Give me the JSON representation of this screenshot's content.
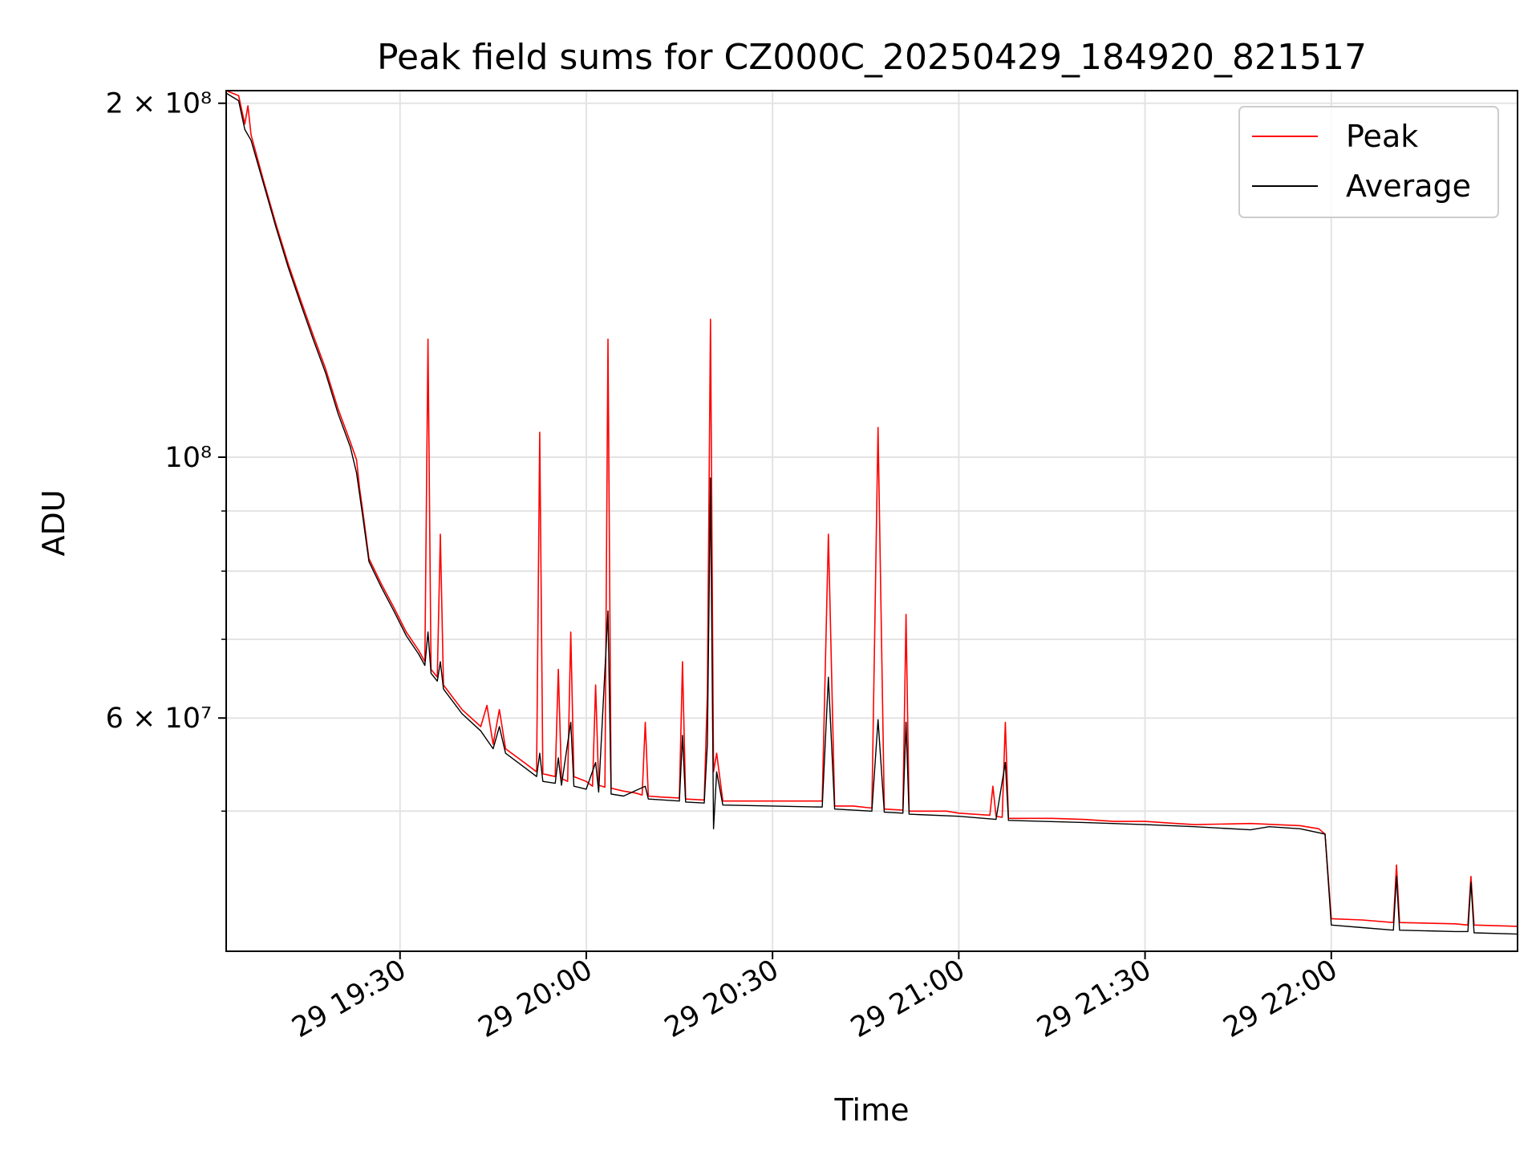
{
  "chart_data": {
    "type": "line",
    "title": "Peak field sums for CZ000C_20250429_184920_821517",
    "xlabel": "Time",
    "ylabel": "ADU",
    "x_axis": {
      "kind": "time",
      "range": [
        "2025-04-29 19:02:00",
        "2025-04-29 22:30:00"
      ],
      "ticks": [
        {
          "t": "2025-04-29 19:30",
          "label": "29 19:30"
        },
        {
          "t": "2025-04-29 20:00",
          "label": "29 20:00"
        },
        {
          "t": "2025-04-29 20:30",
          "label": "29 20:30"
        },
        {
          "t": "2025-04-29 21:00",
          "label": "29 21:00"
        },
        {
          "t": "2025-04-29 21:30",
          "label": "29 21:30"
        },
        {
          "t": "2025-04-29 22:00",
          "label": "29 22:00"
        }
      ]
    },
    "y_axis": {
      "scale": "log",
      "range": [
        38000000,
        205000000
      ],
      "major_ticks": [
        {
          "value": 200000000,
          "label": "2 × 10⁸"
        },
        {
          "value": 100000000,
          "label": "10⁸"
        },
        {
          "value": 60000000,
          "label": "6 × 10⁷"
        }
      ],
      "minor_ticks": [
        50000000,
        70000000,
        80000000,
        90000000
      ]
    },
    "grid": true,
    "legend": {
      "position": "top-right"
    },
    "series": [
      {
        "name": "Peak",
        "color": "#ff0000",
        "points": [
          [
            "19:02",
            205000000
          ],
          [
            "19:04",
            203000000
          ],
          [
            "19:05",
            192000000
          ],
          [
            "19:05.5",
            199000000
          ],
          [
            "19:06",
            188000000
          ],
          [
            "19:08",
            172000000
          ],
          [
            "19:10",
            158000000
          ],
          [
            "19:12",
            146000000
          ],
          [
            "19:14",
            136000000
          ],
          [
            "19:16",
            127000000
          ],
          [
            "19:18",
            119000000
          ],
          [
            "19:20",
            110000000
          ],
          [
            "19:22",
            103000000
          ],
          [
            "19:23",
            99500000
          ],
          [
            "19:23.5",
            94000000
          ],
          [
            "19:24",
            90000000
          ],
          [
            "19:25",
            82000000
          ],
          [
            "19:27",
            78000000
          ],
          [
            "19:29",
            74500000
          ],
          [
            "19:31",
            71000000
          ],
          [
            "19:33",
            68500000
          ],
          [
            "19:34",
            67000000
          ],
          [
            "19:34.5",
            126000000
          ],
          [
            "19:35",
            66000000
          ],
          [
            "19:36",
            65000000
          ],
          [
            "19:36.5",
            86000000
          ],
          [
            "19:37",
            64000000
          ],
          [
            "19:40",
            61000000
          ],
          [
            "19:43",
            59000000
          ],
          [
            "19:44",
            61500000
          ],
          [
            "19:45",
            57000000
          ],
          [
            "19:46",
            61000000
          ],
          [
            "19:47",
            56500000
          ],
          [
            "19:50",
            55000000
          ],
          [
            "19:52",
            54000000
          ],
          [
            "19:52.5",
            105000000
          ],
          [
            "19:53",
            53800000
          ],
          [
            "19:55",
            53500000
          ],
          [
            "19:55.5",
            66000000
          ],
          [
            "19:56",
            53300000
          ],
          [
            "19:57",
            53000000
          ],
          [
            "19:57.5",
            71000000
          ],
          [
            "19:58",
            53500000
          ],
          [
            "20:00",
            53000000
          ],
          [
            "20:01",
            52500000
          ],
          [
            "20:01.5",
            64000000
          ],
          [
            "20:02",
            52600000
          ],
          [
            "20:03",
            52400000
          ],
          [
            "20:03.5",
            126000000
          ],
          [
            "20:04",
            52300000
          ],
          [
            "20:06",
            52000000
          ],
          [
            "20:08",
            51800000
          ],
          [
            "20:09",
            51600000
          ],
          [
            "20:09.5",
            59500000
          ],
          [
            "20:10",
            51500000
          ],
          [
            "20:12",
            51400000
          ],
          [
            "20:15",
            51300000
          ],
          [
            "20:15.5",
            67000000
          ],
          [
            "20:16",
            51200000
          ],
          [
            "20:19",
            51100000
          ],
          [
            "20:19.5",
            63000000
          ],
          [
            "20:20",
            131000000
          ],
          [
            "20:20.5",
            54000000
          ],
          [
            "20:21",
            56000000
          ],
          [
            "20:22",
            51000000
          ],
          [
            "20:25",
            51000000
          ],
          [
            "20:30",
            51000000
          ],
          [
            "20:35",
            51000000
          ],
          [
            "20:38",
            51000000
          ],
          [
            "20:39",
            86000000
          ],
          [
            "20:40",
            50500000
          ],
          [
            "20:43",
            50500000
          ],
          [
            "20:46",
            50300000
          ],
          [
            "20:47",
            106000000
          ],
          [
            "20:48",
            50200000
          ],
          [
            "20:51",
            50100000
          ],
          [
            "20:51.5",
            73500000
          ],
          [
            "20:52",
            50000000
          ],
          [
            "20:55",
            50000000
          ],
          [
            "20:58",
            50000000
          ],
          [
            "21:00",
            49800000
          ],
          [
            "21:05",
            49600000
          ],
          [
            "21:05.5",
            52500000
          ],
          [
            "21:06",
            49500000
          ],
          [
            "21:07",
            49400000
          ],
          [
            "21:07.5",
            59500000
          ],
          [
            "21:08",
            49300000
          ],
          [
            "21:15",
            49300000
          ],
          [
            "21:20",
            49200000
          ],
          [
            "21:25",
            49000000
          ],
          [
            "21:30",
            49000000
          ],
          [
            "21:35",
            48800000
          ],
          [
            "21:38",
            48700000
          ],
          [
            "21:47",
            48800000
          ],
          [
            "21:55",
            48600000
          ],
          [
            "21:58",
            48300000
          ],
          [
            "21:59",
            47800000
          ],
          [
            "22:00",
            40500000
          ],
          [
            "22:05",
            40400000
          ],
          [
            "22:10",
            40200000
          ],
          [
            "22:10.5",
            45000000
          ],
          [
            "22:11",
            40200000
          ],
          [
            "22:20",
            40100000
          ],
          [
            "22:22",
            40000000
          ],
          [
            "22:22.5",
            44000000
          ],
          [
            "22:23",
            40000000
          ],
          [
            "22:30",
            39900000
          ]
        ]
      },
      {
        "name": "Average",
        "color": "#000000",
        "points": [
          [
            "19:02",
            204000000
          ],
          [
            "19:04",
            201000000
          ],
          [
            "19:05",
            190000000
          ],
          [
            "19:06",
            186000000
          ],
          [
            "19:08",
            171000000
          ],
          [
            "19:10",
            157000000
          ],
          [
            "19:12",
            145000000
          ],
          [
            "19:14",
            135000000
          ],
          [
            "19:16",
            126000000
          ],
          [
            "19:18",
            118000000
          ],
          [
            "19:20",
            109000000
          ],
          [
            "19:22",
            102000000
          ],
          [
            "19:23",
            97000000
          ],
          [
            "19:24",
            89000000
          ],
          [
            "19:25",
            81500000
          ],
          [
            "19:27",
            77500000
          ],
          [
            "19:29",
            74000000
          ],
          [
            "19:31",
            70500000
          ],
          [
            "19:33",
            68000000
          ],
          [
            "19:34",
            66500000
          ],
          [
            "19:34.5",
            71000000
          ],
          [
            "19:35",
            65500000
          ],
          [
            "19:36",
            64500000
          ],
          [
            "19:36.5",
            67000000
          ],
          [
            "19:37",
            63500000
          ],
          [
            "19:40",
            60500000
          ],
          [
            "19:43",
            58500000
          ],
          [
            "19:45",
            56500000
          ],
          [
            "19:46",
            59000000
          ],
          [
            "19:47",
            56000000
          ],
          [
            "19:50",
            54500000
          ],
          [
            "19:52",
            53500000
          ],
          [
            "19:52.5",
            56000000
          ],
          [
            "19:53",
            53000000
          ],
          [
            "19:55",
            52800000
          ],
          [
            "19:55.5",
            55500000
          ],
          [
            "19:56",
            52600000
          ],
          [
            "19:57.5",
            59500000
          ],
          [
            "19:58",
            52500000
          ],
          [
            "20:00",
            52200000
          ],
          [
            "20:01.5",
            55000000
          ],
          [
            "20:02",
            51900000
          ],
          [
            "20:03.5",
            74000000
          ],
          [
            "20:04",
            51700000
          ],
          [
            "20:06",
            51500000
          ],
          [
            "20:09.5",
            52500000
          ],
          [
            "20:10",
            51200000
          ],
          [
            "20:15",
            51000000
          ],
          [
            "20:15.5",
            58000000
          ],
          [
            "20:16",
            50900000
          ],
          [
            "20:19",
            50800000
          ],
          [
            "20:19.5",
            57000000
          ],
          [
            "20:20",
            96000000
          ],
          [
            "20:20.5",
            48300000
          ],
          [
            "20:21",
            54000000
          ],
          [
            "20:22",
            50600000
          ],
          [
            "20:30",
            50500000
          ],
          [
            "20:38",
            50400000
          ],
          [
            "20:39",
            65000000
          ],
          [
            "20:40",
            50200000
          ],
          [
            "20:46",
            50000000
          ],
          [
            "20:47",
            59800000
          ],
          [
            "20:48",
            49900000
          ],
          [
            "20:51",
            49800000
          ],
          [
            "20:51.5",
            59500000
          ],
          [
            "20:52",
            49700000
          ],
          [
            "21:00",
            49500000
          ],
          [
            "21:06",
            49200000
          ],
          [
            "21:07.5",
            55000000
          ],
          [
            "21:08",
            49100000
          ],
          [
            "21:20",
            48900000
          ],
          [
            "21:30",
            48700000
          ],
          [
            "21:38",
            48500000
          ],
          [
            "21:47",
            48200000
          ],
          [
            "21:50",
            48500000
          ],
          [
            "21:55",
            48300000
          ],
          [
            "21:59",
            47800000
          ],
          [
            "22:00",
            40000000
          ],
          [
            "22:05",
            39800000
          ],
          [
            "22:10",
            39600000
          ],
          [
            "22:10.5",
            44000000
          ],
          [
            "22:11",
            39600000
          ],
          [
            "22:20",
            39500000
          ],
          [
            "22:22",
            39500000
          ],
          [
            "22:22.5",
            43500000
          ],
          [
            "22:23",
            39400000
          ],
          [
            "22:30",
            39300000
          ]
        ]
      }
    ]
  }
}
